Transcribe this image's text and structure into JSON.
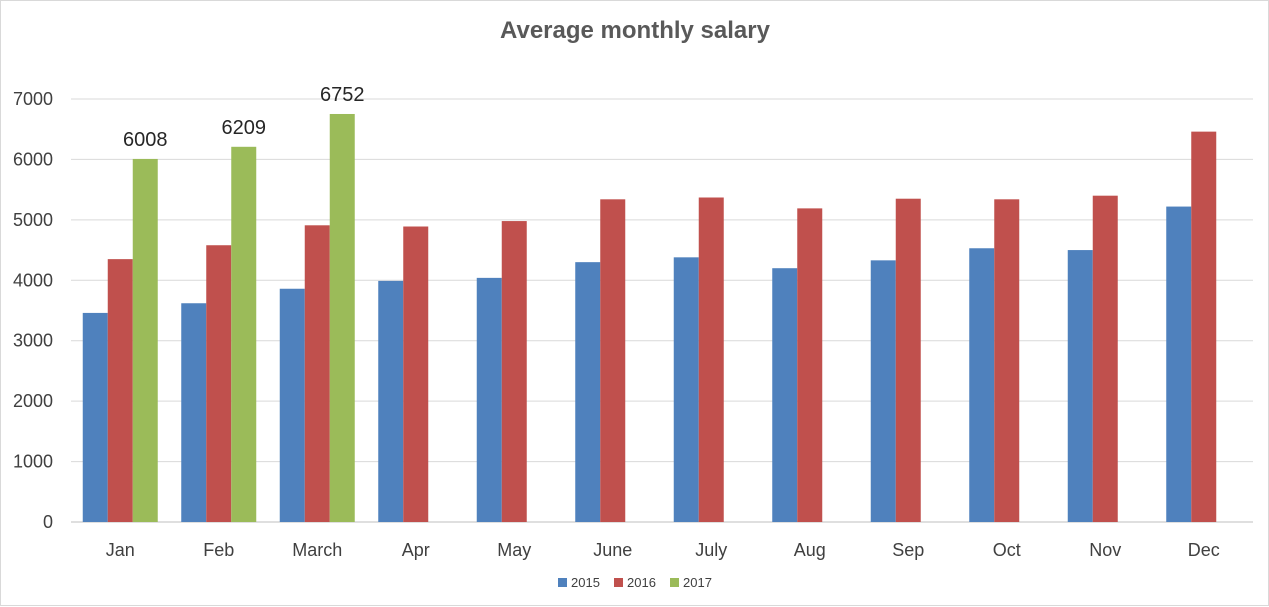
{
  "chart_data": {
    "type": "bar",
    "title": "Average monthly salary",
    "xlabel": "",
    "ylabel": "",
    "ylim": [
      0,
      7000
    ],
    "yticks": [
      0,
      1000,
      2000,
      3000,
      4000,
      5000,
      6000,
      7000
    ],
    "grid": true,
    "legend_position": "bottom",
    "categories": [
      "Jan",
      "Feb",
      "March",
      "Apr",
      "May",
      "June",
      "July",
      "Aug",
      "Sep",
      "Oct",
      "Nov",
      "Dec"
    ],
    "series": [
      {
        "name": "2015",
        "color": "#4f81bd",
        "values": [
          3460,
          3620,
          3860,
          3990,
          4040,
          4300,
          4380,
          4200,
          4330,
          4530,
          4500,
          5220
        ]
      },
      {
        "name": "2016",
        "color": "#c0504d",
        "values": [
          4350,
          4580,
          4910,
          4890,
          4980,
          5340,
          5370,
          5190,
          5350,
          5340,
          5400,
          6460
        ]
      },
      {
        "name": "2017",
        "color": "#9bbb59",
        "values": [
          6008,
          6209,
          6752,
          null,
          null,
          null,
          null,
          null,
          null,
          null,
          null,
          null
        ],
        "data_labels": [
          "6008",
          "6209",
          "6752"
        ]
      }
    ]
  }
}
